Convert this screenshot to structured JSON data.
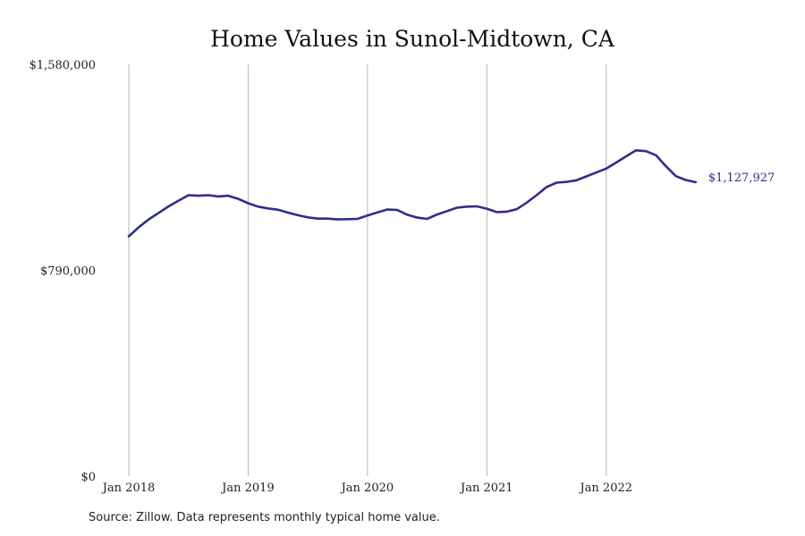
{
  "chart_data": {
    "type": "line",
    "title": "Home Values in Sunol-Midtown, CA",
    "xlabel": "",
    "ylabel": "",
    "ylim": [
      0,
      1580000
    ],
    "y_ticks": [
      {
        "value": 0,
        "label": "$0"
      },
      {
        "value": 790000,
        "label": "$790,000"
      },
      {
        "value": 1580000,
        "label": "$1,580,000"
      }
    ],
    "x_ticks": [
      {
        "value": "2018-01",
        "label": "Jan 2018"
      },
      {
        "value": "2019-01",
        "label": "Jan 2019"
      },
      {
        "value": "2020-01",
        "label": "Jan 2020"
      },
      {
        "value": "2021-01",
        "label": "Jan 2021"
      },
      {
        "value": "2022-01",
        "label": "Jan 2022"
      }
    ],
    "grid": "vertical lines at year ticks",
    "line_color": "#2e2e8c",
    "end_label": "$1,127,927",
    "series": [
      {
        "x": [
          "2018-01",
          "2018-02",
          "2018-03",
          "2018-04",
          "2018-05",
          "2018-06",
          "2018-07",
          "2018-08",
          "2018-09",
          "2018-10",
          "2018-11",
          "2018-12",
          "2019-01",
          "2019-02",
          "2019-03",
          "2019-04",
          "2019-05",
          "2019-06",
          "2019-07",
          "2019-08",
          "2019-09",
          "2019-10",
          "2019-11",
          "2019-12",
          "2020-01",
          "2020-02",
          "2020-03",
          "2020-04",
          "2020-05",
          "2020-06",
          "2020-07",
          "2020-08",
          "2020-09",
          "2020-10",
          "2020-11",
          "2020-12",
          "2021-01",
          "2021-02",
          "2021-03",
          "2021-04",
          "2021-05",
          "2021-06",
          "2021-07",
          "2021-08",
          "2021-09",
          "2021-10",
          "2021-11",
          "2021-12",
          "2022-01",
          "2022-02",
          "2022-03",
          "2022-04",
          "2022-05",
          "2022-06",
          "2022-07",
          "2022-08",
          "2022-09",
          "2022-10"
        ],
        "values": [
          920000,
          955000,
          985000,
          1010000,
          1035000,
          1057000,
          1078000,
          1076000,
          1078000,
          1073000,
          1076000,
          1064000,
          1047000,
          1034000,
          1027000,
          1022000,
          1011000,
          1001000,
          993000,
          988000,
          988000,
          985000,
          986000,
          987000,
          1000000,
          1012000,
          1023000,
          1021000,
          1003000,
          992000,
          987000,
          1004000,
          1017000,
          1030000,
          1034000,
          1035000,
          1026000,
          1013000,
          1015000,
          1024000,
          1049000,
          1078000,
          1109000,
          1126000,
          1129000,
          1135000,
          1150000,
          1165000,
          1180000,
          1203000,
          1227000,
          1250000,
          1247000,
          1231000,
          1189000,
          1151000,
          1136000,
          1127927
        ]
      }
    ]
  },
  "footer": {
    "source": "Source: Zillow. Data represents monthly typical home value."
  }
}
